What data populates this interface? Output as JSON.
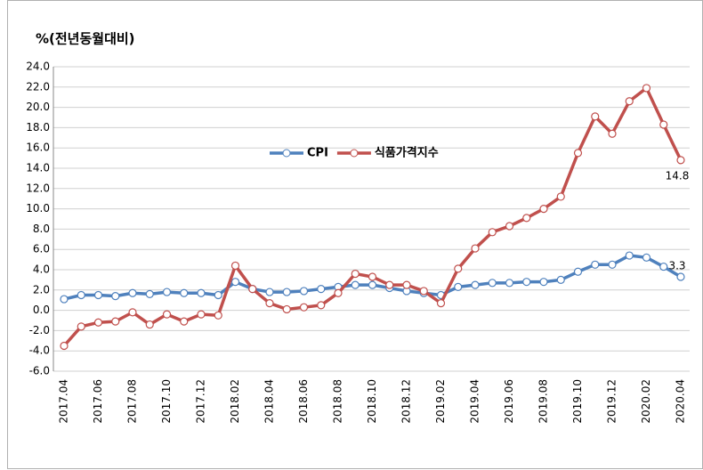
{
  "chart_data": {
    "type": "line",
    "title": "%(전년동월대비)",
    "categories": [
      "2017.04",
      null,
      "2017.06",
      null,
      "2017.08",
      null,
      "2017.10",
      null,
      "2017.12",
      null,
      "2018.02",
      null,
      "2018.04",
      null,
      "2018.06",
      null,
      "2018.08",
      null,
      "2018.10",
      null,
      "2018.12",
      null,
      "2019.02",
      null,
      "2019.04",
      null,
      "2019.06",
      null,
      "2019.08",
      null,
      "2019.10",
      null,
      "2019.12",
      null,
      "2020.02",
      null,
      "2020.04"
    ],
    "series": [
      {
        "name": "CPI",
        "color": "#4f81bd",
        "values": [
          1.1,
          1.5,
          1.5,
          1.4,
          1.7,
          1.6,
          1.8,
          1.7,
          1.7,
          1.5,
          2.8,
          2.1,
          1.8,
          1.8,
          1.9,
          2.1,
          2.3,
          2.5,
          2.5,
          2.2,
          1.9,
          1.7,
          1.5,
          2.3,
          2.5,
          2.7,
          2.7,
          2.8,
          2.8,
          3.0,
          3.8,
          4.5,
          4.5,
          5.4,
          5.2,
          4.3,
          3.3
        ]
      },
      {
        "name": "식품가격지수",
        "color": "#c0504d",
        "values": [
          -3.5,
          -1.6,
          -1.2,
          -1.1,
          -0.2,
          -1.4,
          -0.4,
          -1.1,
          -0.4,
          -0.5,
          4.4,
          2.1,
          0.7,
          0.1,
          0.3,
          0.5,
          1.7,
          3.6,
          3.3,
          2.5,
          2.5,
          1.9,
          0.7,
          4.1,
          6.1,
          7.7,
          8.3,
          9.1,
          10.0,
          11.2,
          15.5,
          19.1,
          17.4,
          20.6,
          21.9,
          18.3,
          14.8
        ]
      }
    ],
    "ylim": [
      -6,
      24
    ],
    "yticks": [
      {
        "value": 24,
        "label": "24.0"
      },
      {
        "value": 22,
        "label": "22.0"
      },
      {
        "value": 20,
        "label": "20.0"
      },
      {
        "value": 18,
        "label": "18.0"
      },
      {
        "value": 16,
        "label": "16.0"
      },
      {
        "value": 14,
        "label": "14.0"
      },
      {
        "value": 12,
        "label": "12.0"
      },
      {
        "value": 10,
        "label": "10.0"
      },
      {
        "value": 8,
        "label": "8.0"
      },
      {
        "value": 6,
        "label": "6.0"
      },
      {
        "value": 4,
        "label": "4.0"
      },
      {
        "value": 2,
        "label": "2.0"
      },
      {
        "value": 0,
        "label": "0.0"
      },
      {
        "value": -2,
        "label": "-2.0"
      },
      {
        "value": -4,
        "label": "-4.0"
      },
      {
        "value": -6,
        "label": "-6.0"
      }
    ],
    "grid": true,
    "legend": "center",
    "data_labels": "last"
  }
}
